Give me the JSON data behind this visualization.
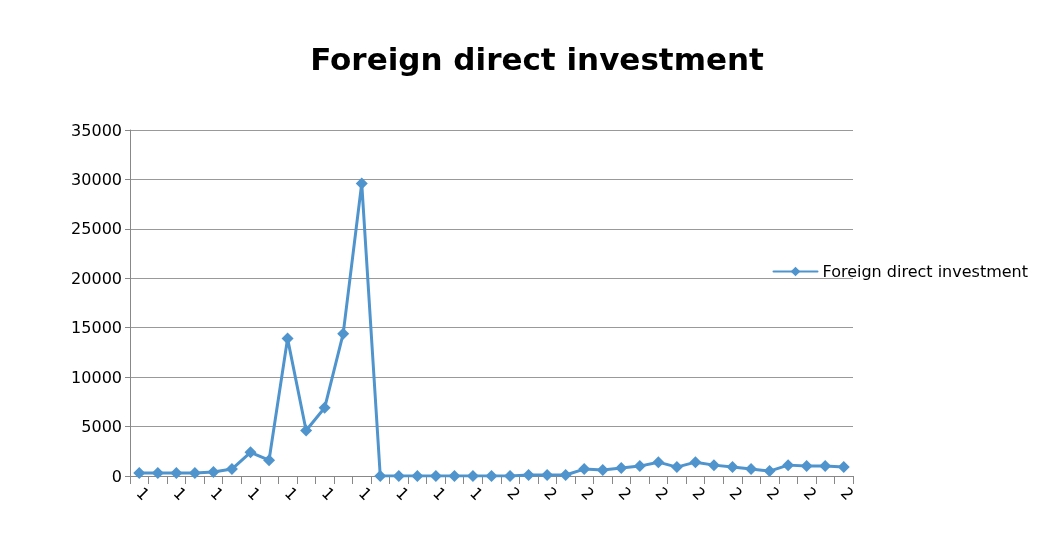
{
  "chart_data": {
    "type": "line",
    "title": "Foreign direct investment",
    "categories": [
      "1",
      null,
      "1",
      null,
      "1",
      null,
      "1",
      null,
      "1",
      null,
      "1",
      null,
      "1",
      null,
      "1",
      null,
      "1",
      null,
      "1",
      null,
      "2",
      null,
      "2",
      null,
      "2",
      null,
      "2",
      null,
      "2",
      null,
      "2",
      null,
      "2",
      null,
      "2",
      null,
      "2",
      null,
      "2"
    ],
    "series": [
      {
        "name": "Foreign direct investment",
        "color": "#4f94cd",
        "values": [
          300,
          300,
          300,
          300,
          400,
          700,
          2400,
          1600,
          13900,
          4600,
          6900,
          14400,
          29600,
          0,
          0,
          0,
          0,
          0,
          0,
          0,
          0,
          100,
          100,
          100,
          700,
          600,
          800,
          1000,
          1400,
          900,
          1400,
          1100,
          900,
          700,
          500,
          1100,
          1000,
          1000,
          900
        ]
      }
    ],
    "ylim": [
      0,
      35000
    ],
    "yticks": [
      0,
      5000,
      10000,
      15000,
      20000,
      25000,
      30000,
      35000
    ],
    "grid": "y",
    "legend": "right",
    "marker": "diamond",
    "line_style": "solid"
  }
}
